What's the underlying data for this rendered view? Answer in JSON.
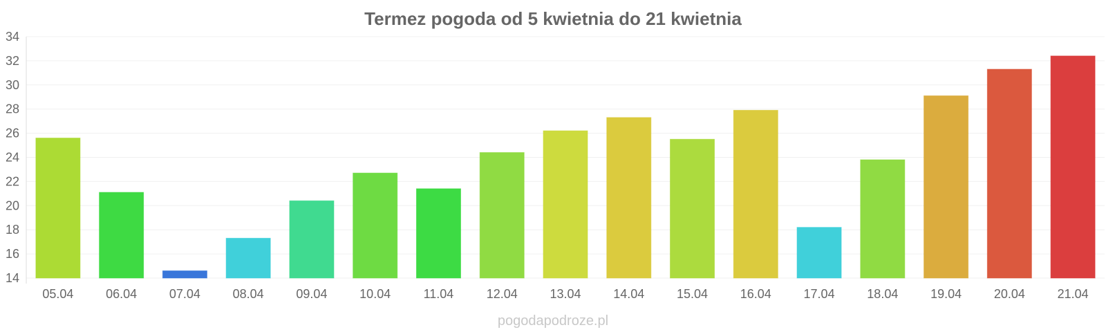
{
  "chart_data": {
    "type": "bar",
    "title": "Termez pogoda od 5 kwietnia do 21 kwietnia",
    "xlabel": "",
    "ylabel": "",
    "categories": [
      "05.04",
      "06.04",
      "07.04",
      "08.04",
      "09.04",
      "10.04",
      "11.04",
      "12.04",
      "13.04",
      "14.04",
      "15.04",
      "16.04",
      "17.04",
      "18.04",
      "19.04",
      "20.04",
      "21.04"
    ],
    "values": [
      25.6,
      21.1,
      14.6,
      17.3,
      20.4,
      22.7,
      21.4,
      24.4,
      26.2,
      27.3,
      25.5,
      27.9,
      18.2,
      23.8,
      29.1,
      31.3,
      32.4
    ],
    "colors": [
      "#a8d929",
      "#34d839",
      "#2e6fd8",
      "#36cdd8",
      "#36d88a",
      "#66d939",
      "#33d93a",
      "#8ad939",
      "#cad934",
      "#d9c834",
      "#a8d934",
      "#d9c834",
      "#36cdd8",
      "#8ad939",
      "#d9a834",
      "#d95034",
      "#d93434"
    ],
    "ylim": [
      14,
      34
    ],
    "yticks": [
      14,
      16,
      18,
      20,
      22,
      24,
      26,
      28,
      30,
      32,
      34
    ],
    "grid": true,
    "legend": "none"
  },
  "watermark": "pogodapodroze.pl"
}
